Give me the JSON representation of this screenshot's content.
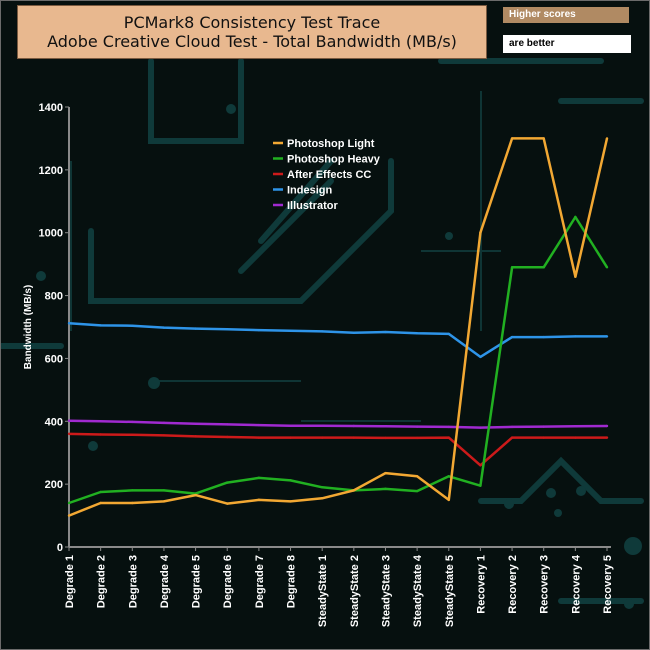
{
  "header": {
    "title_line1": "PCMark8 Consistency Test Trace",
    "title_line2": "Adobe Creative Cloud Test - Total Bandwidth (MB/s)",
    "note_top": "Higher scores",
    "note_bottom": "are better"
  },
  "chart_data": {
    "type": "line",
    "title": "PCMark8 Consistency Test Trace\nAdobe Creative Cloud Test - Total Bandwidth (MB/s)",
    "xlabel": "",
    "ylabel": "Bandwidth (MB/s)",
    "ylim": [
      0,
      1400
    ],
    "yticks": [
      0,
      200,
      400,
      600,
      800,
      1000,
      1200,
      1400
    ],
    "grid": false,
    "legend_position": "top-center",
    "categories": [
      "Degrade 1",
      "Degrade 2",
      "Degrade 3",
      "Degrade 4",
      "Degrade 5",
      "Degrade 6",
      "Degrade 7",
      "Degrade 8",
      "SteadyState 1",
      "SteadyState 2",
      "SteadyState 3",
      "SteadyState 4",
      "SteadyState 5",
      "Recovery 1",
      "Recovery 2",
      "Recovery 3",
      "Recovery 4",
      "Recovery 5"
    ],
    "series": [
      {
        "name": "Photoshop Light",
        "color": "#f2a833",
        "values": [
          100,
          140,
          140,
          145,
          165,
          138,
          150,
          145,
          155,
          180,
          235,
          225,
          150,
          1000,
          1300,
          1300,
          860,
          1300
        ]
      },
      {
        "name": "Photoshop Heavy",
        "color": "#21b021",
        "values": [
          140,
          175,
          180,
          180,
          170,
          205,
          220,
          212,
          190,
          180,
          185,
          178,
          225,
          195,
          890,
          890,
          1050,
          890
        ]
      },
      {
        "name": "After Effects CC",
        "color": "#cc1a1a",
        "values": [
          360,
          358,
          357,
          355,
          352,
          350,
          348,
          348,
          348,
          348,
          347,
          347,
          348,
          260,
          348,
          348,
          348,
          348
        ]
      },
      {
        "name": "Indesign",
        "color": "#2e94e8",
        "values": [
          712,
          705,
          704,
          698,
          695,
          693,
          690,
          688,
          686,
          682,
          684,
          680,
          678,
          605,
          668,
          668,
          670,
          670
        ]
      },
      {
        "name": "Illustrator",
        "color": "#a02ad0",
        "values": [
          402,
          400,
          398,
          395,
          392,
          390,
          388,
          386,
          386,
          385,
          384,
          383,
          382,
          380,
          382,
          383,
          384,
          385
        ]
      }
    ]
  }
}
